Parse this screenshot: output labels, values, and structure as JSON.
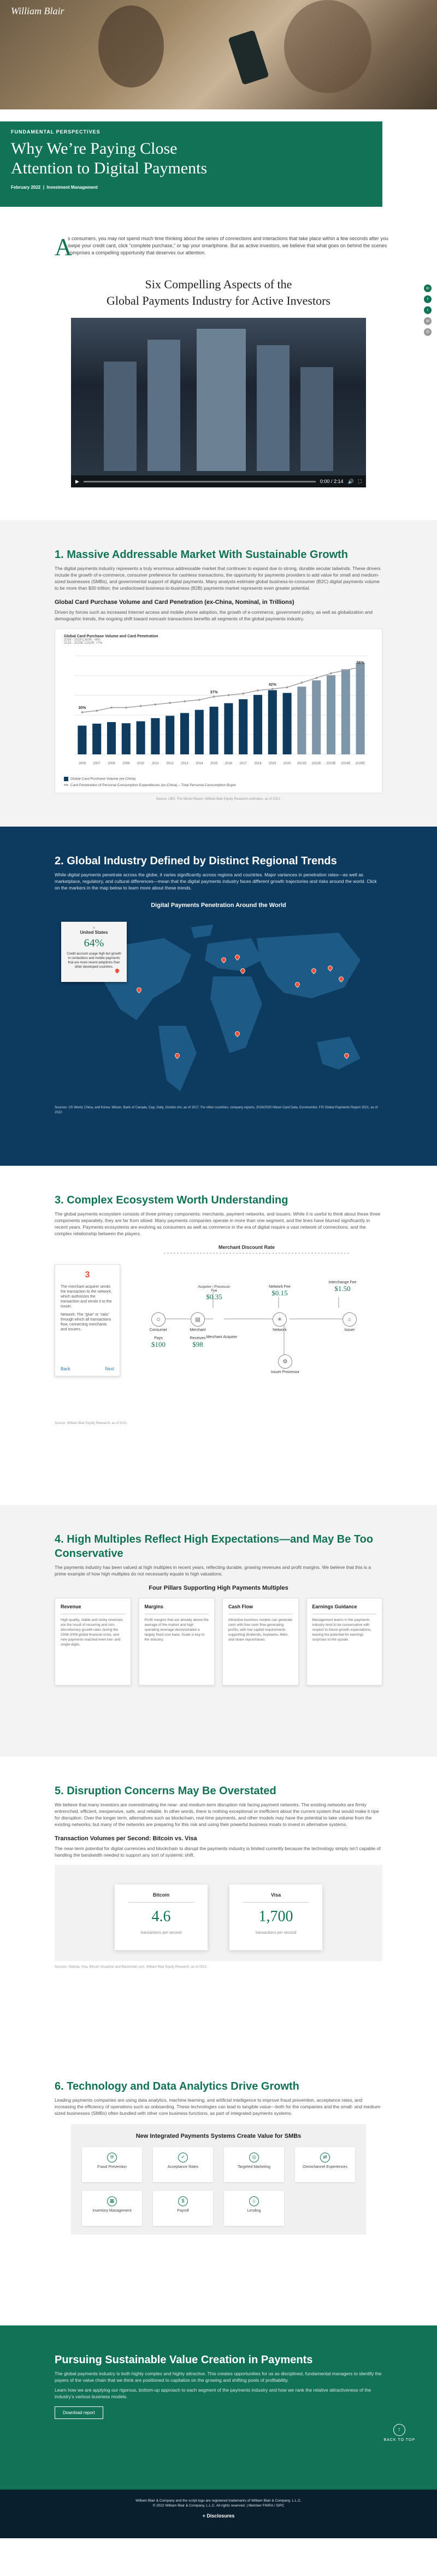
{
  "brand": {
    "logo": "William Blair"
  },
  "hero": {
    "kicker": "FUNDAMENTAL PERSPECTIVES",
    "title_line1": "Why We’re Paying Close",
    "title_line2": "Attention to Digital Payments",
    "date": "February 2022",
    "category": "Investment Management"
  },
  "intro": {
    "dropcap": "A",
    "text": "s consumers, you may not spend much time thinking about the series of connections and interactions that take place within a few seconds after you swipe your credit card, click “complete purchase,” or tap your smartphone. But as active investors, we believe that what goes on behind the scenes comprises a compelling opportunity that deserves our attention."
  },
  "share": [
    "in",
    "f",
    "t",
    "✉",
    "⎙"
  ],
  "main_title": {
    "line1": "Six Compelling Aspects of the",
    "line2": "Global Payments Industry for Active Investors"
  },
  "video": {
    "time": "0:00 / 2:14"
  },
  "s1": {
    "title": "1. Massive Addressable Market With Sustainable Growth",
    "text": "The digital payments industry represents a truly enormous addressable market that continues to expand due to strong, durable secular tailwinds. These drivers include the growth of e-commerce, consumer preference for cashless transactions, the opportunity for payments providers to add value for small and medium-sized businesses (SMBs), and governmental support of digital payments. Many analysts estimate global business-to-consumer (B2C) digital payments volume to be more than $30 trillion; the undisclosed business-to-business (B2B) payments market represents even greater potential.",
    "chart_title": "Global Card Purchase Volume and Card Penetration (ex-China, Nominal, in Trillions)",
    "chart_sub": "Driven by forces such as increased Internet access and mobile phone adoption, the growth of e-commerce, government policy, as well as globalization and demographic trends, the ongoing shift toward noncash transactions benefits all segments of the global payments industry.",
    "inner_title": "Global Card Purchase Volume and Card Penetration",
    "inner_sub1": "2016 - 2019 CAGR: +8%",
    "inner_sub2": "2019 - 2025E CAGR: +7%",
    "legend_bar": "Global Card Purchase Volume (ex-China)",
    "legend_line": "Card Penetration of Personal Consumption Expenditures (ex-China) – Total Personal Consumption Buyer",
    "source": "Source: UBS, The Nilson Report, William Blair Equity Research estimates, as of 2021."
  },
  "chart_data": {
    "type": "bar",
    "categories": [
      "2006",
      "2007",
      "2008",
      "2009",
      "2010",
      "2011",
      "2012",
      "2013",
      "2014",
      "2015",
      "2016",
      "2017",
      "2018",
      "2019",
      "2020",
      "2021E",
      "2022E",
      "2023E",
      "2024E",
      "2025E"
    ],
    "series": [
      {
        "name": "Global Card Purchase Volume (ex-China)",
        "values": [
          7.3,
          7.8,
          8.2,
          7.9,
          8.4,
          9.2,
          9.8,
          10.5,
          11.3,
          12.1,
          13.0,
          14.0,
          15.1,
          16.3,
          15.6,
          17.2,
          18.8,
          20.1,
          21.6,
          23.2
        ]
      },
      {
        "name": "Card Penetration of Personal Consumption Expenditures (ex-China) – Total Personal Consumption Buyer",
        "values": [
          27,
          28,
          30,
          30,
          31,
          32,
          33,
          34,
          35,
          37,
          38,
          39,
          41,
          42,
          43,
          46,
          49,
          52,
          54,
          56
        ]
      }
    ],
    "point_labels": [
      "30%",
      "37%",
      "42%",
      "56%"
    ],
    "colors": {
      "bar": "#0e3b5e",
      "line": "#9a9a9a"
    }
  },
  "s2": {
    "title": "2. Global Industry Defined by Distinct Regional Trends",
    "text": "While digital payments penetrate across the globe, it varies significantly across regions and countries. Major variances in penetration rates—as well as marketplace, regulatory, and cultural differences—mean that the digital payments industry faces different growth trajectories and risks around the world. Click on the markers in the map below to learn more about these trends.",
    "map_title": "Digital Payments Penetration Around the World",
    "card_title": "United States",
    "card_value": "64%",
    "card_text": "Credit account usage high but growth in contactless and mobile payments that are more recent adoptions than other developed countries.",
    "note": "Sources: US World, China, and Korea: Wilson, Bank of Canada, Cap, Daily, Gordon Inn, as of 2017. For other countries: company reports, 2019/2020 Nilson Card Data, Euromonitor, FIS Global Payments Report 2021, as of 2022."
  },
  "s3": {
    "title": "3. Complex Ecosystem Worth Understanding",
    "text": "The global payments ecosystem consists of three primary components: merchants, payment networks, and issuers. While it is useful to think about these three components separately, they are far from siloed. Many payments companies operate in more than one segment, and the lines have blurred significantly in recent years. Payments ecosystems are evolving as consumers as well as commerce in the era of digital require a vast network of connections, and the complex relationship between the players.",
    "discount_title": "Merchant Discount Rate",
    "card_num": "3",
    "card_text1": "The merchant acquirer sends the transaction to the network, which authorizes the transaction and sends it to the issuer.",
    "card_text2": "Network: The “glue” or “rails” through which all transactions flow, connecting merchants and issuers.",
    "back": "Back",
    "next": "Next",
    "consumer": "Consumer",
    "pays_label": "Pays",
    "pays": "$100",
    "merchant": "Merchant",
    "receives_label": "Receives",
    "receives": "$98",
    "acquirer": "Merchant Acquirer",
    "processor_label": "Acquirer / Processor Fee",
    "processor": "$0.35",
    "network": "Network",
    "network_fee_label": "Network Fee",
    "network_fee": "$0.15",
    "issuer": "Issuer",
    "interchange_label": "Interchange Fee",
    "interchange": "$1.50",
    "issuer_proc": "Issuer Processor",
    "note": "Source: William Blair Equity Research, as of 2021."
  },
  "s4": {
    "title_line1": "4. High Multiples Reflect High Expectations—and May Be Too",
    "title_line2": "Conservative",
    "text": "The payments industry has been valued at high multiples in recent years, reflecting durable, growing revenues and profit margins. We believe that this is a prime example of how high multiples do not necessarily equate to high valuations.",
    "row_title": "Four Pillars Supporting High Payments Multiples",
    "cards": [
      {
        "title": "Revenue",
        "text": "High-quality, stable and sticky revenues are the result of recurring and non-discretionary growth rates during the 2008-2009 global financial crisis, and new payments reached even low- and single-digits."
      },
      {
        "title": "Margins",
        "text": "Profit margins that are already above the average of the market and high operating leverage demonstrated a largely fixed cost base. Scale is key to the industry."
      },
      {
        "title": "Cash Flow",
        "text": "Attractive business models can generate cash with free cash flow generating profits, with low capital requirements supporting dividends, buybacks, M&A, and share repurchases."
      },
      {
        "title": "Earnings Guidance",
        "text": "Management teams in the payments industry tend to be conservative with respect to future growth expectations, leaving the potential for earnings surprises to the upside."
      }
    ]
  },
  "s5": {
    "title": "5. Disruption Concerns May Be Overstated",
    "text": "We believe that many investors are overestimating the near- and medium-term disruption risk facing payment networks. The existing networks are firmly entrenched, efficient, inexpensive, safe, and reliable. In other words, there is nothing exceptional or inefficient about the current system that would make it ripe for disruption. Over the longer term, alternatives such as blockchain, real-time payments, and other models may have the potential to take volume from the existing networks, but many of the networks are preparing for this risk and using their powerful business moats to invest in alternative systems.",
    "sub": "Transaction Volumes per Second: Bitcoin vs. Visa",
    "sub_text": "The near-term potential for digital currencies and blockchain to disrupt the payments industry is limited currently because the technology simply isn’t capable of handling the bandwidth needed to support any sort of systemic shift.",
    "bitcoin_label": "Bitcoin",
    "bitcoin_value": "4.6",
    "visa_label": "Visa",
    "visa_value": "1,700",
    "units": "transactions per second",
    "note": "Sources: Statista, Visa, Bitcoin Visualizer and Blockchain.com, William Blair Equity Research, as of 2021."
  },
  "s6": {
    "title": "6. Technology and Data Analytics Drive Growth",
    "text": "Leading payments companies are using data analytics, machine learning, and artificial intelligence to improve fraud prevention, acceptance rates, and increasing the efficiency of operations such as onboarding. These technologies can lead to tangible value—both for the companies and the small- and medium-sized businesses (SMBs) often bundled with other core business functions, as part of integrated payments systems.",
    "box_title": "New Integrated Payments Systems Create Value for SMBs",
    "items": [
      "Fraud Prevention",
      "Acceptance Rates",
      "Targeted Marketing",
      "Omnichannel Experiences",
      "Inventory Management",
      "Payroll",
      "Lending"
    ],
    "icons": [
      "⛨",
      "✓",
      "◎",
      "⇄",
      "▦",
      "$",
      "⌂"
    ]
  },
  "cta": {
    "title": "Pursuing Sustainable Value Creation in Payments",
    "text1": "The global payments industry is both highly complex and highly attractive. This creates opportunities for us as disciplined, fundamental managers to identify the payers of the value chain that we think are positioned to capitalize on the growing and shifting pools of profitability.",
    "text2": "Learn how we are applying our rigorous, bottom-up approach to each segment of the payments industry and how we rank the relative attractiveness of the industry’s various business models.",
    "button": "Download report",
    "back_to_top": "BACK TO TOP"
  },
  "footer": {
    "line1": "William Blair & Company and the script logo are registered trademarks of William Blair & Company, L.L.C.",
    "line2": "© 2022 William Blair & Company, L.L.C. All rights reserved. | Member FINRA / SIPC",
    "disclosures": "+ Disclosures"
  }
}
